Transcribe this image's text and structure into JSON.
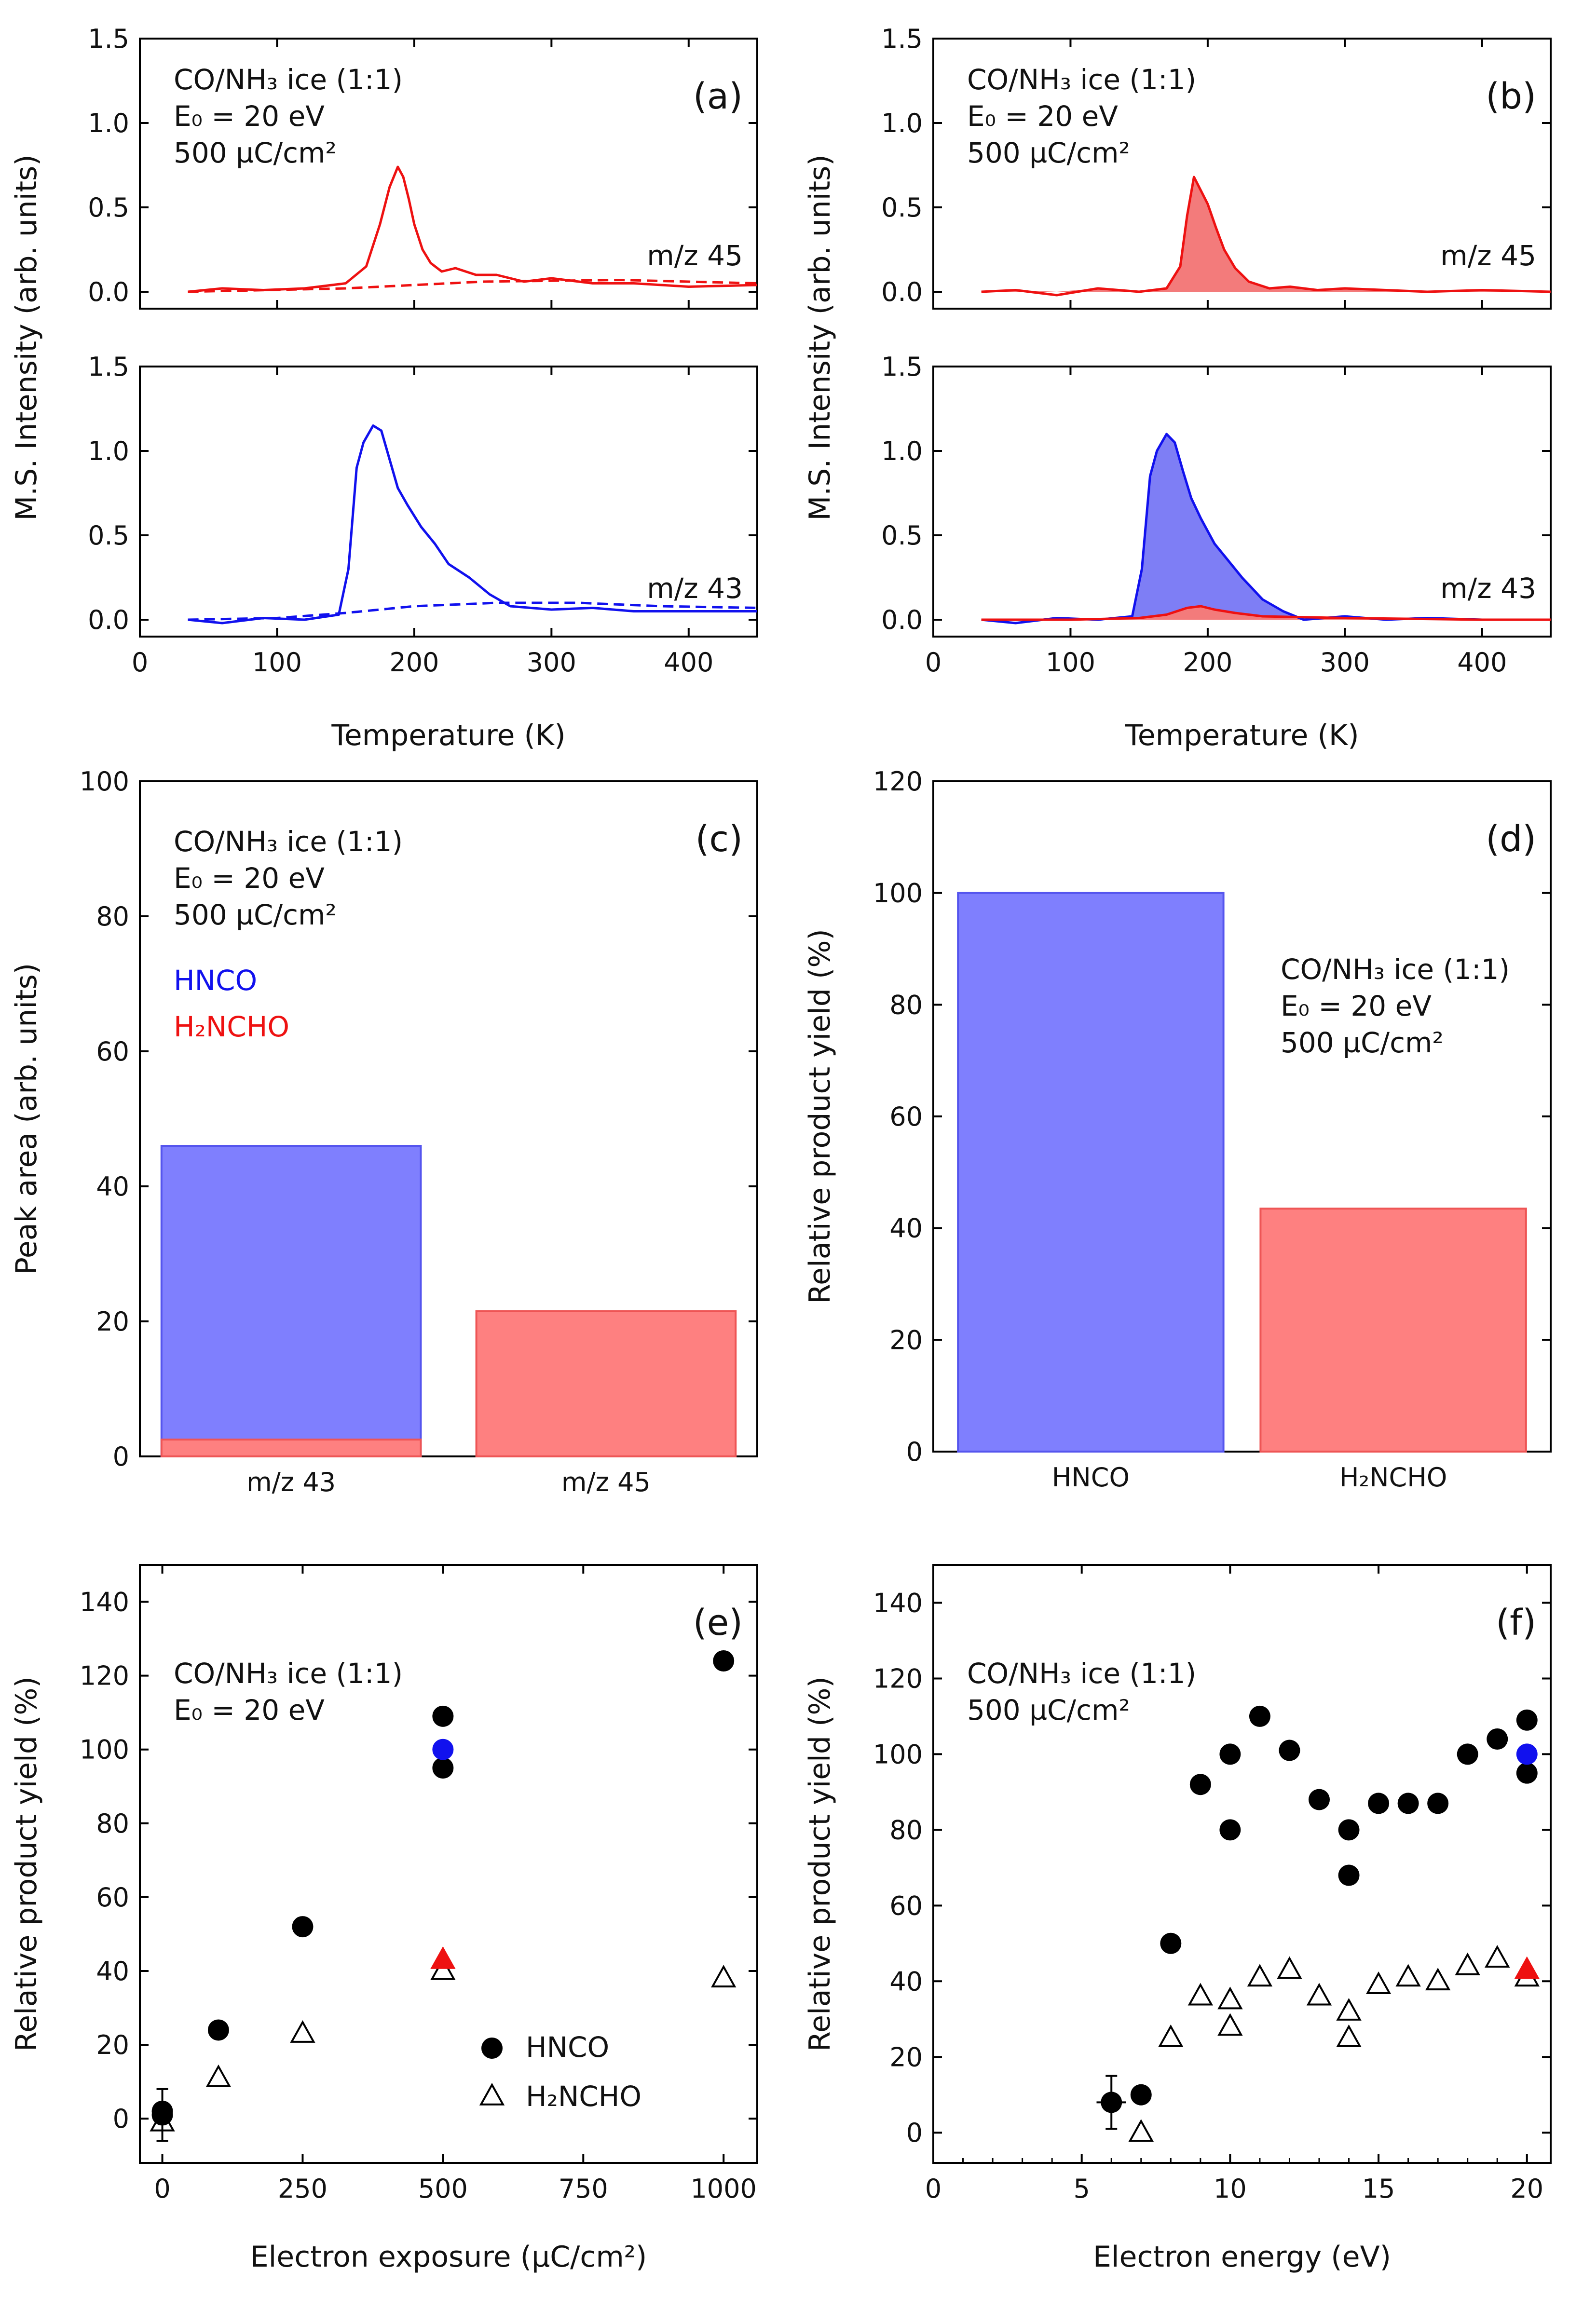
{
  "figure": {
    "annotations": {
      "ice": "CO/NH₃ ice (1:1)",
      "energy": "E₀ = 20 eV",
      "exposure": "500 µC/cm²"
    }
  },
  "chart_data": [
    {
      "id": "a",
      "label": "(a)",
      "type": "line",
      "title": "",
      "xlabel": "Temperature (K)",
      "ylabel": "M.S. Intensity (arb. units)",
      "xlim": [
        0,
        450
      ],
      "xticks": [
        0,
        100,
        200,
        300,
        400
      ],
      "subpanels": [
        {
          "ylim": [
            -0.1,
            1.5
          ],
          "yticks": [
            0.0,
            0.5,
            1.0,
            1.5
          ],
          "ann": [
            "CO/NH₃ ice (1:1)",
            "E₀ = 20 eV",
            "500 µC/cm²"
          ],
          "series": [
            {
              "name": "m/z 45",
              "color": "#ee1111",
              "style": "solid",
              "x": [
                35,
                60,
                90,
                120,
                150,
                165,
                175,
                182,
                188,
                192,
                196,
                200,
                206,
                212,
                220,
                230,
                245,
                260,
                280,
                300,
                330,
                360,
                400,
                450
              ],
              "y": [
                0.0,
                0.02,
                0.01,
                0.02,
                0.05,
                0.15,
                0.4,
                0.62,
                0.74,
                0.68,
                0.55,
                0.4,
                0.25,
                0.17,
                0.12,
                0.14,
                0.1,
                0.1,
                0.06,
                0.08,
                0.05,
                0.05,
                0.03,
                0.04
              ]
            },
            {
              "name": "baseline",
              "color": "#ee1111",
              "style": "dashed",
              "x": [
                35,
                150,
                250,
                350,
                450
              ],
              "y": [
                0.0,
                0.02,
                0.06,
                0.07,
                0.05
              ]
            }
          ],
          "label": "m/z 45"
        },
        {
          "ylim": [
            -0.1,
            1.5
          ],
          "yticks": [
            0.0,
            0.5,
            1.0,
            1.5
          ],
          "series": [
            {
              "name": "m/z 43",
              "color": "#1111ee",
              "style": "solid",
              "x": [
                35,
                60,
                90,
                120,
                145,
                152,
                158,
                163,
                170,
                176,
                182,
                188,
                195,
                205,
                215,
                225,
                240,
                255,
                270,
                300,
                330,
                360,
                400,
                450
              ],
              "y": [
                0.0,
                -0.02,
                0.01,
                0.0,
                0.03,
                0.3,
                0.9,
                1.05,
                1.15,
                1.12,
                0.95,
                0.78,
                0.68,
                0.55,
                0.45,
                0.33,
                0.25,
                0.15,
                0.08,
                0.06,
                0.07,
                0.05,
                0.05,
                0.05
              ]
            },
            {
              "name": "baseline",
              "color": "#1111ee",
              "style": "dashed",
              "x": [
                35,
                100,
                150,
                200,
                260,
                320,
                380,
                450
              ],
              "y": [
                0.0,
                0.01,
                0.04,
                0.08,
                0.1,
                0.1,
                0.08,
                0.07
              ]
            }
          ],
          "label": "m/z 43"
        }
      ]
    },
    {
      "id": "b",
      "label": "(b)",
      "type": "area",
      "title": "",
      "xlabel": "Temperature (K)",
      "ylabel": "M.S. Intensity (arb. units)",
      "xlim": [
        0,
        450
      ],
      "xticks": [
        0,
        100,
        200,
        300,
        400
      ],
      "subpanels": [
        {
          "ylim": [
            -0.1,
            1.5
          ],
          "yticks": [
            0.0,
            0.5,
            1.0,
            1.5
          ],
          "ann": [
            "CO/NH₃ ice (1:1)",
            "E₀ = 20 eV",
            "500 µC/cm²"
          ],
          "series": [
            {
              "name": "m/z 45",
              "color": "#ee1111",
              "fill": "#f37b7b",
              "style": "solid",
              "x": [
                35,
                60,
                90,
                120,
                150,
                170,
                180,
                185,
                190,
                195,
                200,
                206,
                212,
                220,
                230,
                245,
                260,
                280,
                300,
                330,
                360,
                400,
                450
              ],
              "y": [
                0.0,
                0.01,
                -0.02,
                0.02,
                0.0,
                0.02,
                0.15,
                0.45,
                0.68,
                0.6,
                0.52,
                0.38,
                0.25,
                0.14,
                0.06,
                0.02,
                0.03,
                0.01,
                0.02,
                0.01,
                0.0,
                0.01,
                0.0
              ]
            }
          ],
          "label": "m/z 45"
        },
        {
          "ylim": [
            -0.1,
            1.5
          ],
          "yticks": [
            0.0,
            0.5,
            1.0,
            1.5
          ],
          "series": [
            {
              "name": "m/z 43",
              "color": "#1111ee",
              "fill": "#7e7ef5",
              "style": "solid",
              "x": [
                35,
                60,
                90,
                120,
                145,
                152,
                158,
                163,
                170,
                176,
                182,
                188,
                195,
                205,
                215,
                225,
                240,
                255,
                270,
                300,
                330,
                360,
                400,
                450
              ],
              "y": [
                0.0,
                -0.02,
                0.01,
                0.0,
                0.02,
                0.3,
                0.85,
                1.0,
                1.1,
                1.05,
                0.88,
                0.72,
                0.6,
                0.45,
                0.35,
                0.25,
                0.12,
                0.05,
                0.0,
                0.02,
                0.0,
                0.01,
                0.0,
                0.0
              ]
            },
            {
              "name": "H2NCHO contribution",
              "color": "#ee1111",
              "fill": "#f37b7b",
              "style": "solid",
              "x": [
                35,
                100,
                150,
                170,
                185,
                195,
                205,
                220,
                240,
                300,
                400,
                450
              ],
              "y": [
                0.0,
                0.0,
                0.01,
                0.03,
                0.07,
                0.08,
                0.06,
                0.04,
                0.02,
                0.01,
                0.0,
                0.0
              ]
            }
          ],
          "label": "m/z 43"
        }
      ]
    },
    {
      "id": "c",
      "label": "(c)",
      "type": "bar",
      "xlabel": "",
      "ylabel": "Peak area (arb. units)",
      "ylim": [
        0,
        100
      ],
      "yticks": [
        0,
        20,
        40,
        60,
        80,
        100
      ],
      "categories": [
        "m/z 43",
        "m/z 45"
      ],
      "series": [
        {
          "name": "HNCO",
          "color": "#7f7ffe",
          "values": [
            46,
            0
          ]
        },
        {
          "name": "H₂NCHO",
          "color": "#fe8080",
          "values": [
            2.5,
            21.5
          ]
        }
      ],
      "ann": [
        "CO/NH₃ ice (1:1)",
        "E₀ = 20 eV",
        "500 µC/cm²"
      ],
      "legend": [
        {
          "text": "HNCO",
          "color": "#1111ee"
        },
        {
          "text": "H₂NCHO",
          "color": "#ee1111"
        }
      ]
    },
    {
      "id": "d",
      "label": "(d)",
      "type": "bar",
      "xlabel": "",
      "ylabel": "Relative product yield (%)",
      "ylim": [
        0,
        120
      ],
      "yticks": [
        0,
        20,
        40,
        60,
        80,
        100,
        120
      ],
      "categories": [
        "HNCO",
        "H₂NCHO"
      ],
      "values": [
        100,
        43.5
      ],
      "colors": [
        "#7f7ffe",
        "#fe8080"
      ],
      "ann": [
        "CO/NH₃ ice (1:1)",
        "E₀ = 20 eV",
        "500 µC/cm²"
      ]
    },
    {
      "id": "e",
      "label": "(e)",
      "type": "scatter",
      "xlabel": "Electron exposure (µC/cm²)",
      "ylabel": "Relative product yield (%)",
      "xlim": [
        -40,
        1060
      ],
      "xticks": [
        0,
        250,
        500,
        750,
        1000
      ],
      "ylim": [
        -12,
        150
      ],
      "yticks": [
        0,
        20,
        40,
        60,
        80,
        100,
        120,
        140
      ],
      "series": [
        {
          "name": "HNCO",
          "marker": "circle",
          "x": [
            0,
            0,
            100,
            250,
            500,
            500,
            1000
          ],
          "y": [
            1,
            2,
            24,
            52,
            109,
            95,
            124
          ]
        },
        {
          "name": "H₂NCHO",
          "marker": "triangle-open",
          "x": [
            0,
            100,
            250,
            500,
            1000
          ],
          "y": [
            -1,
            11,
            23,
            40,
            38
          ]
        },
        {
          "name": "HNCO reference",
          "marker": "circle-blue",
          "x": [
            500
          ],
          "y": [
            100
          ]
        },
        {
          "name": "H₂NCHO reference",
          "marker": "triangle-red",
          "x": [
            500
          ],
          "y": [
            43
          ]
        }
      ],
      "errorbars": [
        {
          "x": 0,
          "y": 1,
          "yerr": 7
        }
      ],
      "ann": [
        "CO/NH₃ ice (1:1)",
        "E₀ = 20 eV"
      ],
      "legend": [
        "HNCO",
        "H₂NCHO"
      ]
    },
    {
      "id": "f",
      "label": "(f)",
      "type": "scatter",
      "xlabel": "Electron energy (eV)",
      "ylabel": "Relative product yield (%)",
      "xlim": [
        0,
        20.8
      ],
      "xticks": [
        0,
        5,
        10,
        15,
        20
      ],
      "ylim": [
        -8,
        150
      ],
      "yticks": [
        0,
        20,
        40,
        60,
        80,
        100,
        120,
        140
      ],
      "series": [
        {
          "name": "HNCO",
          "marker": "circle",
          "x": [
            6,
            7,
            8,
            9,
            10,
            10,
            11,
            12,
            13,
            14,
            14,
            15,
            16,
            17,
            18,
            19,
            20,
            20
          ],
          "y": [
            8,
            10,
            50,
            92,
            100,
            80,
            110,
            101,
            88,
            80,
            68,
            87,
            87,
            87,
            100,
            104,
            109,
            95
          ]
        },
        {
          "name": "H₂NCHO",
          "marker": "triangle-open",
          "x": [
            7,
            8,
            9,
            10,
            10,
            11,
            12,
            13,
            14,
            14,
            15,
            16,
            17,
            18,
            19,
            20
          ],
          "y": [
            0,
            25,
            36,
            35,
            28,
            41,
            43,
            36,
            32,
            25,
            39,
            41,
            40,
            44,
            46,
            41
          ]
        },
        {
          "name": "HNCO reference",
          "marker": "circle-blue",
          "x": [
            20
          ],
          "y": [
            100
          ]
        },
        {
          "name": "H₂NCHO reference",
          "marker": "triangle-red",
          "x": [
            20
          ],
          "y": [
            43
          ]
        }
      ],
      "errorbars": [
        {
          "x": 6,
          "y": 8,
          "yerr": 7,
          "xerr": 0.5
        }
      ],
      "ann": [
        "CO/NH₃ ice (1:1)",
        "500 µC/cm²"
      ]
    }
  ]
}
